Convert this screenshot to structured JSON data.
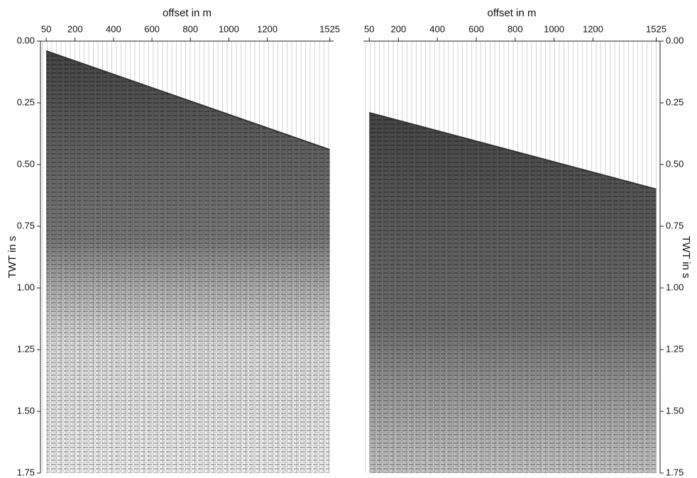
{
  "chart_data": [
    {
      "type": "seismic",
      "xlabel": "offset in m",
      "ylabel": "TWT in s",
      "yaxis_side": "left",
      "xlim": [
        20,
        1545
      ],
      "xticks": [
        50,
        200,
        400,
        600,
        800,
        1000,
        1200,
        1525
      ],
      "ylim": [
        1.75,
        0
      ],
      "yticks": [
        {
          "value": 0,
          "label": "0.00"
        },
        {
          "value": 0.25,
          "label": "0.25"
        },
        {
          "value": 0.5,
          "label": "0.50"
        },
        {
          "value": 0.75,
          "label": "0.75"
        },
        {
          "value": 1,
          "label": "1.00"
        },
        {
          "value": 1.25,
          "label": "1.25"
        },
        {
          "value": 1.5,
          "label": "1.50"
        },
        {
          "value": 1.75,
          "label": "1.75"
        }
      ],
      "series": [
        {
          "x": [
            50,
            1525
          ],
          "values": [
            0.04,
            0.44
          ],
          "color": "#333333"
        }
      ]
    },
    {
      "type": "seismic",
      "xlabel": "offset in m",
      "ylabel": "TWT in s",
      "yaxis_side": "right",
      "xlim": [
        20,
        1545
      ],
      "xticks": [
        50,
        200,
        400,
        600,
        800,
        1000,
        1200,
        1525
      ],
      "ylim": [
        1.75,
        0
      ],
      "yticks": [
        {
          "value": 0,
          "label": "0.00"
        },
        {
          "value": 0.25,
          "label": "0.25"
        },
        {
          "value": 0.5,
          "label": "0.50"
        },
        {
          "value": 0.75,
          "label": "0.75"
        },
        {
          "value": 1,
          "label": "1.00"
        },
        {
          "value": 1.25,
          "label": "1.25"
        },
        {
          "value": 1.5,
          "label": "1.50"
        },
        {
          "value": 1.75,
          "label": "1.75"
        }
      ],
      "series": [
        {
          "x": [
            50,
            1525
          ],
          "values": [
            0.29,
            0.6
          ],
          "color": "#333333"
        }
      ]
    }
  ]
}
